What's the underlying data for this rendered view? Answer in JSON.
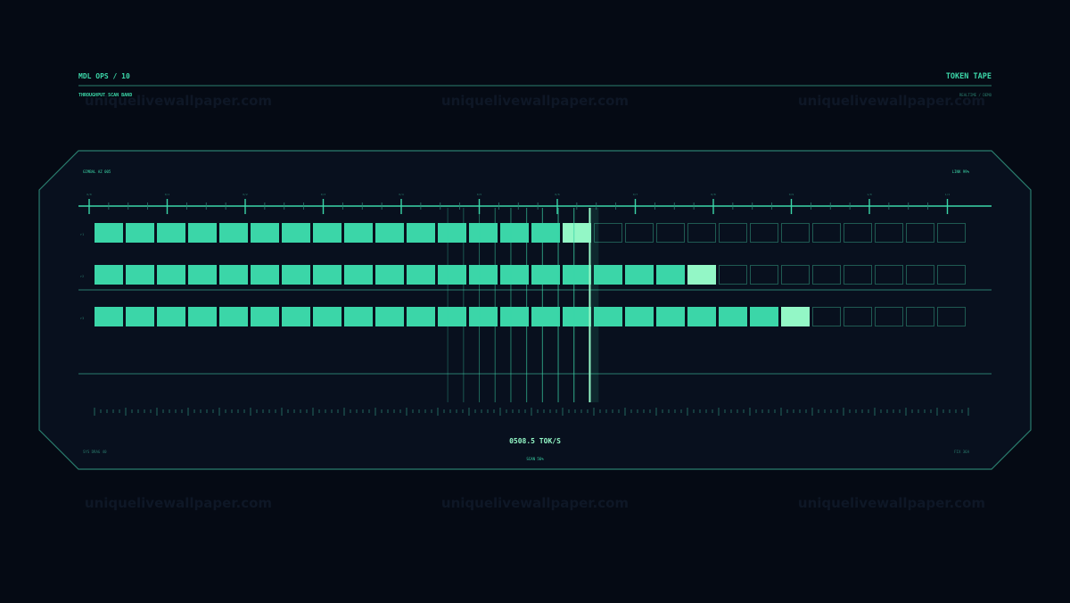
{
  "header": {
    "left_title": "MDL OPS / 10",
    "left_subtitle": "THROUGHPUT SCAN BAND",
    "right_title": "TOKEN TAPE",
    "right_subtitle": "REALTIME / DEMO"
  },
  "panel": {
    "corner_top_left": "GIMBAL AZ 005",
    "corner_top_right": "LINK 99%",
    "corner_bottom_left": "SYS DRAG 40",
    "corner_bottom_right": "FIX 36A",
    "readout": "0508.5 TOK/S",
    "readout_sub": "SCAN 56%"
  },
  "ruler_labels": [
    "0/0",
    "0/1",
    "0/2",
    "0/3",
    "0/4",
    "0/5",
    "0/6",
    "0/7",
    "0/8",
    "0/9",
    "1/0",
    "1/1"
  ],
  "rows": [
    {
      "label": "r1",
      "filled": 15,
      "highlight_index": 15,
      "total": 28
    },
    {
      "label": "r2",
      "filled": 19,
      "highlight_index": 19,
      "total": 28
    },
    {
      "label": "r3",
      "filled": 22,
      "highlight_index": 22,
      "total": 28
    }
  ],
  "scan_progress": 0.56,
  "watermark": "uniquelivewallpaper.com",
  "colors": {
    "accent": "#3bd6a8",
    "highlight": "#93f7c6",
    "frame": "#2a7d6e",
    "background": "#050a14",
    "panel": "#08101e"
  }
}
